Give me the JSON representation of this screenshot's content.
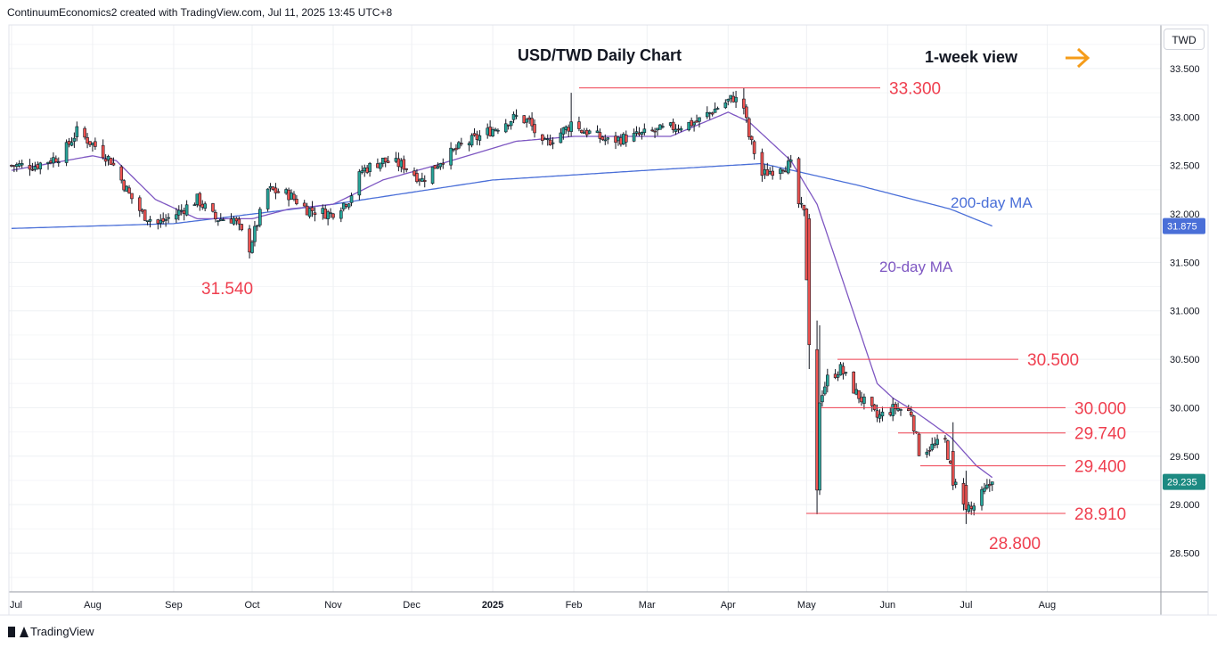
{
  "header_text": "ContinuumEconomics2 created with TradingView.com, Jul 11, 2025 13:45 UTC+8",
  "footer_text": "TradingView",
  "currency_button": "TWD",
  "chart_data": {
    "type": "candlestick",
    "title": "USD/TWD Daily Chart",
    "view_label": "1-week view",
    "arrow_icon": "right-arrow-icon",
    "x_tick_labels": [
      "Jul",
      "Aug",
      "Sep",
      "Oct",
      "Nov",
      "Dec",
      "2025",
      "Feb",
      "Mar",
      "Apr",
      "May",
      "Jun",
      "Jul",
      "Aug"
    ],
    "y_tick_labels": [
      "33.500",
      "33.000",
      "32.500",
      "32.000",
      "31.500",
      "31.000",
      "30.500",
      "30.000",
      "29.500",
      "29.000",
      "28.500"
    ],
    "ylim": [
      28.1,
      33.95
    ],
    "last_price": "29.235",
    "ma200_value": "31.875",
    "colors": {
      "up": "#26a69a",
      "down": "#ef5350",
      "ma20": "#7e57c2",
      "ma200": "#4a6fd8",
      "level": "#ef3f4f",
      "arrow": "#f59c1a"
    },
    "levels": [
      {
        "value": 33.3,
        "label": "33.300"
      },
      {
        "value": 30.5,
        "label": "30.500"
      },
      {
        "value": 30.0,
        "label": "30.000"
      },
      {
        "value": 29.74,
        "label": "29.740"
      },
      {
        "value": 29.4,
        "label": "29.400"
      },
      {
        "value": 28.91,
        "label": "28.910"
      }
    ],
    "point_labels": [
      {
        "value": 31.54,
        "label": "31.540"
      },
      {
        "value": 28.8,
        "label": "28.800"
      }
    ],
    "ma_labels": {
      "ma200": "200-day MA",
      "ma20": "20-day MA"
    },
    "close_anchors": [
      [
        "2024-07-01",
        32.5
      ],
      [
        "2024-07-10",
        32.5
      ],
      [
        "2024-07-20",
        32.6
      ],
      [
        "2024-07-26",
        32.85
      ],
      [
        "2024-08-02",
        32.7
      ],
      [
        "2024-08-08",
        32.55
      ],
      [
        "2024-08-15",
        32.2
      ],
      [
        "2024-08-20",
        32.0
      ],
      [
        "2024-08-26",
        31.9
      ],
      [
        "2024-09-02",
        32.0
      ],
      [
        "2024-09-10",
        32.15
      ],
      [
        "2024-09-17",
        31.95
      ],
      [
        "2024-09-24",
        31.95
      ],
      [
        "2024-09-30",
        31.65
      ],
      [
        "2024-10-07",
        32.25
      ],
      [
        "2024-10-15",
        32.2
      ],
      [
        "2024-10-22",
        32.05
      ],
      [
        "2024-10-31",
        32.0
      ],
      [
        "2024-11-07",
        32.15
      ],
      [
        "2024-11-12",
        32.45
      ],
      [
        "2024-11-20",
        32.55
      ],
      [
        "2024-11-28",
        32.5
      ],
      [
        "2024-12-05",
        32.35
      ],
      [
        "2024-12-12",
        32.55
      ],
      [
        "2024-12-20",
        32.7
      ],
      [
        "2024-12-27",
        32.8
      ],
      [
        "2025-01-06",
        32.95
      ],
      [
        "2025-01-10",
        33.0
      ],
      [
        "2025-01-15",
        32.95
      ],
      [
        "2025-01-20",
        32.7
      ],
      [
        "2025-01-30",
        32.9
      ],
      [
        "2025-02-06",
        32.85
      ],
      [
        "2025-02-14",
        32.75
      ],
      [
        "2025-02-24",
        32.8
      ],
      [
        "2025-03-04",
        32.85
      ],
      [
        "2025-03-12",
        32.9
      ],
      [
        "2025-03-20",
        32.95
      ],
      [
        "2025-03-28",
        33.1
      ],
      [
        "2025-04-03",
        33.2
      ],
      [
        "2025-04-07",
        33.1
      ],
      [
        "2025-04-09",
        32.8
      ],
      [
        "2025-04-14",
        32.4
      ],
      [
        "2025-04-21",
        32.5
      ],
      [
        "2025-04-25",
        32.5
      ],
      [
        "2025-04-28",
        32.1
      ],
      [
        "2025-04-30",
        32.0
      ],
      [
        "2025-05-02",
        30.7
      ],
      [
        "2025-05-05",
        29.15
      ],
      [
        "2025-05-06",
        30.1
      ],
      [
        "2025-05-09",
        30.3
      ],
      [
        "2025-05-14",
        30.4
      ],
      [
        "2025-05-20",
        30.15
      ],
      [
        "2025-05-28",
        29.9
      ],
      [
        "2025-06-04",
        30.0
      ],
      [
        "2025-06-10",
        29.95
      ],
      [
        "2025-06-13",
        29.55
      ],
      [
        "2025-06-18",
        29.6
      ],
      [
        "2025-06-23",
        29.65
      ],
      [
        "2025-06-26",
        29.25
      ],
      [
        "2025-07-01",
        29.0
      ],
      [
        "2025-07-03",
        28.95
      ],
      [
        "2025-07-07",
        29.1
      ],
      [
        "2025-07-11",
        29.235
      ]
    ],
    "ma20_anchors": [
      [
        "2024-07-01",
        32.45
      ],
      [
        "2024-08-01",
        32.6
      ],
      [
        "2024-08-10",
        32.55
      ],
      [
        "2024-08-25",
        32.15
      ],
      [
        "2024-09-10",
        31.95
      ],
      [
        "2024-10-01",
        31.95
      ],
      [
        "2024-10-15",
        32.05
      ],
      [
        "2024-11-01",
        32.1
      ],
      [
        "2024-11-20",
        32.35
      ],
      [
        "2024-12-10",
        32.5
      ],
      [
        "2025-01-10",
        32.75
      ],
      [
        "2025-02-01",
        32.8
      ],
      [
        "2025-03-10",
        32.8
      ],
      [
        "2025-04-01",
        33.05
      ],
      [
        "2025-04-09",
        32.95
      ],
      [
        "2025-04-25",
        32.55
      ],
      [
        "2025-05-05",
        32.1
      ],
      [
        "2025-05-15",
        31.3
      ],
      [
        "2025-05-28",
        30.25
      ],
      [
        "2025-06-03",
        30.1
      ],
      [
        "2025-06-12",
        29.95
      ],
      [
        "2025-06-25",
        29.7
      ],
      [
        "2025-07-05",
        29.4
      ],
      [
        "2025-07-11",
        29.28
      ]
    ],
    "ma200_anchors": [
      [
        "2024-07-01",
        31.85
      ],
      [
        "2024-09-01",
        31.9
      ],
      [
        "2024-11-01",
        32.1
      ],
      [
        "2025-01-01",
        32.35
      ],
      [
        "2025-03-01",
        32.45
      ],
      [
        "2025-04-14",
        32.52
      ],
      [
        "2025-05-20",
        32.3
      ],
      [
        "2025-06-25",
        32.05
      ],
      [
        "2025-07-11",
        31.875
      ]
    ],
    "candles_special": [
      {
        "date": "2025-05-02",
        "open": 31.95,
        "close": 30.65,
        "high": 32.0,
        "low": 30.4
      },
      {
        "date": "2025-05-05",
        "open": 30.6,
        "close": 29.15,
        "high": 30.9,
        "low": 28.9
      },
      {
        "date": "2025-05-06",
        "open": 29.15,
        "close": 30.05,
        "high": 30.85,
        "low": 29.1
      },
      {
        "date": "2025-06-26",
        "open": 29.55,
        "close": 29.2,
        "high": 29.85,
        "low": 29.15
      },
      {
        "date": "2025-07-01",
        "open": 29.2,
        "close": 28.95,
        "high": 29.35,
        "low": 28.8
      },
      {
        "date": "2025-01-31",
        "open": 32.85,
        "close": 32.95,
        "high": 33.25,
        "low": 32.8
      }
    ]
  }
}
